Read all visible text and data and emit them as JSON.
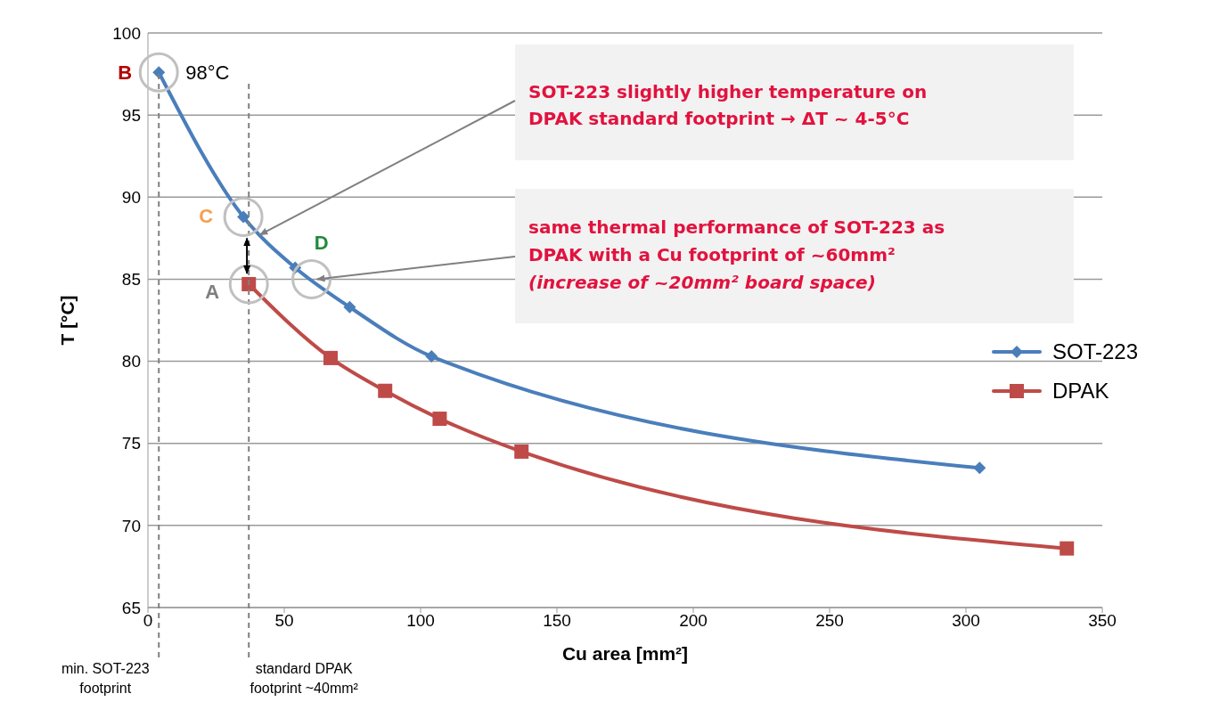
{
  "chart_data": {
    "type": "line",
    "xlabel": "Cu area [mm²]",
    "ylabel": "T [°C]",
    "xlim": [
      0,
      350
    ],
    "xticks": [
      0,
      50,
      100,
      150,
      200,
      250,
      300,
      350
    ],
    "ylim": [
      65,
      100
    ],
    "yticks": [
      65,
      70,
      75,
      80,
      85,
      90,
      95,
      100
    ],
    "grid": "y",
    "legend": "right",
    "series": [
      {
        "name": "SOT-223",
        "color": "#4a7ebb",
        "marker": "diamond",
        "x": [
          4,
          35,
          54,
          74,
          104,
          305
        ],
        "values": [
          97.6,
          88.8,
          85.7,
          83.3,
          80.3,
          73.5
        ]
      },
      {
        "name": "DPAK",
        "color": "#be4b48",
        "marker": "square",
        "x": [
          37,
          67,
          87,
          107,
          137,
          337
        ],
        "values": [
          84.7,
          80.2,
          78.2,
          76.5,
          74.5,
          68.6
        ]
      }
    ],
    "ref_lines": [
      {
        "axis": "x",
        "value": 4,
        "label": "min. SOT-223\nfootprint",
        "color": "#808080",
        "line_style": "dashed"
      },
      {
        "axis": "x",
        "value": 37,
        "label": "standard DPAK\nfootprint ~40mm²",
        "color": "#808080",
        "line_style": "dashed"
      }
    ],
    "annotations": [
      {
        "text": "B",
        "x": 4,
        "y": 97.6
      },
      {
        "text": "98°C",
        "x": 4,
        "y": 97.6
      },
      {
        "text": "C",
        "x": 35,
        "y": 88.8
      },
      {
        "text": "A",
        "x": 37,
        "y": 84.7
      },
      {
        "text": "D",
        "x": 60,
        "y": 85
      },
      {
        "text": "SOT-223 slightly higher temperature on\nDPAK standard footprint → ΔT ~ 4-5°C",
        "x": 41,
        "y": 87.7
      },
      {
        "text": "same thermal performance of SOT-223 as\nDPAK with a Cu footprint of ~60mm²",
        "x": 60,
        "y": 85
      },
      "(increase of ~20mm² board space)"
    ]
  }
}
